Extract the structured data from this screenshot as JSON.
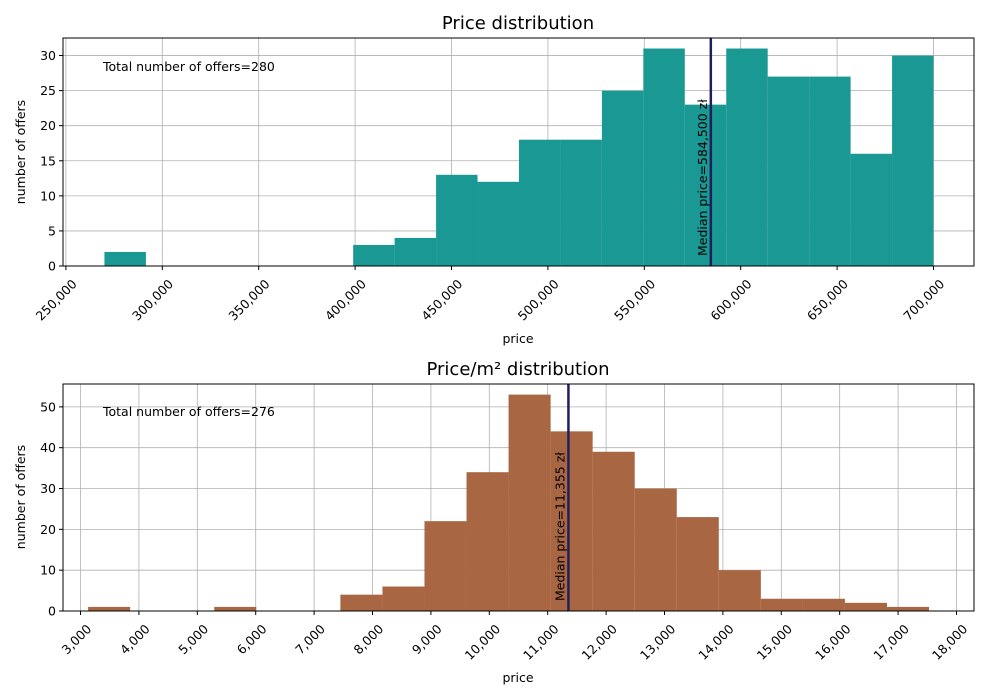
{
  "chart_data": [
    {
      "type": "bar",
      "title": "Price distribution",
      "xlabel": "price",
      "ylabel": "number of offers",
      "annotation": "Total number of offers=280",
      "median_label": "Median price=584,500 zł",
      "median": 584500,
      "xlim": [
        248500,
        721000
      ],
      "ylim": [
        0,
        32.5
      ],
      "grid": true,
      "bar_color": "#1a9893",
      "median_color": "#1f1f5e",
      "xticks": [
        250000,
        300000,
        350000,
        400000,
        450000,
        500000,
        550000,
        600000,
        650000,
        700000
      ],
      "xtick_labels": [
        "250,000",
        "300,000",
        "350,000",
        "400,000",
        "450,000",
        "500,000",
        "550,000",
        "600,000",
        "650,000",
        "700,000"
      ],
      "yticks": [
        0,
        5,
        10,
        15,
        20,
        25,
        30
      ],
      "ytick_labels": [
        "0",
        "5",
        "10",
        "15",
        "20",
        "25",
        "30"
      ],
      "bins": [
        {
          "x0": 270000,
          "x1": 291500,
          "count": 2
        },
        {
          "x0": 399000,
          "x1": 420500,
          "count": 3
        },
        {
          "x0": 420500,
          "x1": 442000,
          "count": 4
        },
        {
          "x0": 442000,
          "x1": 463500,
          "count": 13
        },
        {
          "x0": 463500,
          "x1": 485000,
          "count": 12
        },
        {
          "x0": 485000,
          "x1": 506500,
          "count": 18
        },
        {
          "x0": 506500,
          "x1": 528000,
          "count": 18
        },
        {
          "x0": 528000,
          "x1": 549500,
          "count": 25
        },
        {
          "x0": 549500,
          "x1": 571000,
          "count": 31
        },
        {
          "x0": 571000,
          "x1": 592500,
          "count": 23
        },
        {
          "x0": 592500,
          "x1": 614000,
          "count": 31
        },
        {
          "x0": 614000,
          "x1": 635500,
          "count": 27
        },
        {
          "x0": 635500,
          "x1": 657000,
          "count": 27
        },
        {
          "x0": 657000,
          "x1": 678500,
          "count": 16
        },
        {
          "x0": 678500,
          "x1": 700000,
          "count": 30
        }
      ]
    },
    {
      "type": "bar",
      "title": "Price/m² distribution",
      "xlabel": "price",
      "ylabel": "number of offers",
      "annotation": "Total number of offers=276",
      "median_label": "Median price=11,355 zł",
      "median": 11355,
      "xlim": [
        2700,
        18300
      ],
      "ylim": [
        0,
        55.6
      ],
      "grid": true,
      "bar_color": "#a86643",
      "median_color": "#1f1f5e",
      "xticks": [
        3000,
        4000,
        5000,
        6000,
        7000,
        8000,
        9000,
        10000,
        11000,
        12000,
        13000,
        14000,
        15000,
        16000,
        17000,
        18000
      ],
      "xtick_labels": [
        "3,000",
        "4,000",
        "5,000",
        "6,000",
        "7,000",
        "8,000",
        "9,000",
        "10,000",
        "11,000",
        "12,000",
        "13,000",
        "14,000",
        "15,000",
        "16,000",
        "17,000",
        "18,000"
      ],
      "yticks": [
        0,
        10,
        20,
        30,
        40,
        50
      ],
      "ytick_labels": [
        "0",
        "10",
        "20",
        "30",
        "40",
        "50"
      ],
      "bins": [
        {
          "x0": 3130,
          "x1": 3850,
          "count": 1
        },
        {
          "x0": 5290,
          "x1": 6010,
          "count": 1
        },
        {
          "x0": 7450,
          "x1": 8170,
          "count": 4
        },
        {
          "x0": 8170,
          "x1": 8890,
          "count": 6
        },
        {
          "x0": 8890,
          "x1": 9610,
          "count": 22
        },
        {
          "x0": 9610,
          "x1": 10330,
          "count": 34
        },
        {
          "x0": 10330,
          "x1": 11050,
          "count": 53
        },
        {
          "x0": 11050,
          "x1": 11770,
          "count": 44
        },
        {
          "x0": 11770,
          "x1": 12490,
          "count": 39
        },
        {
          "x0": 12490,
          "x1": 13210,
          "count": 30
        },
        {
          "x0": 13210,
          "x1": 13930,
          "count": 23
        },
        {
          "x0": 13930,
          "x1": 14650,
          "count": 10
        },
        {
          "x0": 14650,
          "x1": 15370,
          "count": 3
        },
        {
          "x0": 15370,
          "x1": 16090,
          "count": 3
        },
        {
          "x0": 16090,
          "x1": 16810,
          "count": 2
        },
        {
          "x0": 16810,
          "x1": 17530,
          "count": 1
        }
      ]
    }
  ]
}
